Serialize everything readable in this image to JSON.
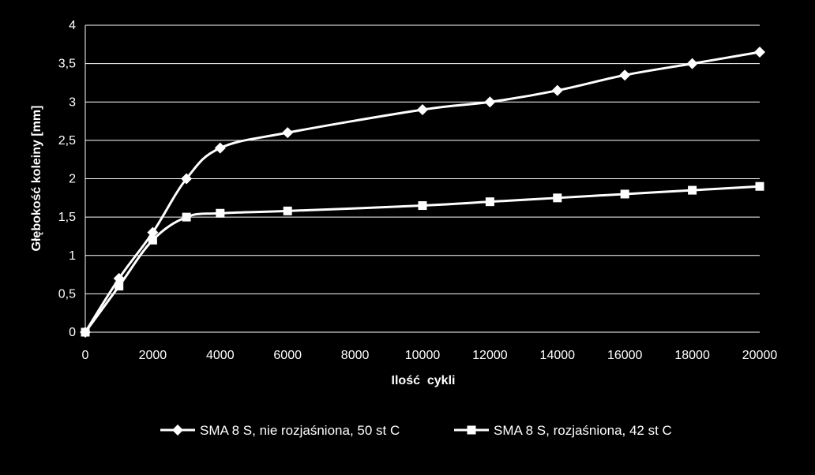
{
  "chart_data": {
    "type": "line",
    "xlabel": "Ilość  cykli",
    "ylabel": "Głębokość koleiny [mm]",
    "xlim": [
      0,
      20000
    ],
    "ylim": [
      0,
      4
    ],
    "x_ticks": [
      "0",
      "2000",
      "4000",
      "6000",
      "8000",
      "10000",
      "12000",
      "14000",
      "16000",
      "18000",
      "20000"
    ],
    "y_ticks": [
      "0",
      "0,5",
      "1",
      "1,5",
      "2",
      "2,5",
      "3",
      "3,5",
      "4"
    ],
    "grid": "horizontal",
    "legend_position": "bottom",
    "series": [
      {
        "name": "SMA 8 S, nie rozjaśniona, 50 st C",
        "marker": "diamond",
        "color": "#ffffff",
        "x": [
          0,
          1000,
          2000,
          3000,
          4000,
          6000,
          10000,
          12000,
          14000,
          16000,
          18000,
          20000
        ],
        "y": [
          0,
          0.7,
          1.3,
          2.0,
          2.4,
          2.6,
          2.9,
          3.0,
          3.15,
          3.35,
          3.5,
          3.65
        ]
      },
      {
        "name": "SMA 8 S, rozjaśniona, 42 st C",
        "marker": "square",
        "color": "#ffffff",
        "x": [
          0,
          1000,
          2000,
          3000,
          4000,
          6000,
          10000,
          12000,
          14000,
          16000,
          18000,
          20000
        ],
        "y": [
          0,
          0.6,
          1.2,
          1.5,
          1.55,
          1.58,
          1.65,
          1.7,
          1.75,
          1.8,
          1.85,
          1.9
        ]
      }
    ]
  }
}
